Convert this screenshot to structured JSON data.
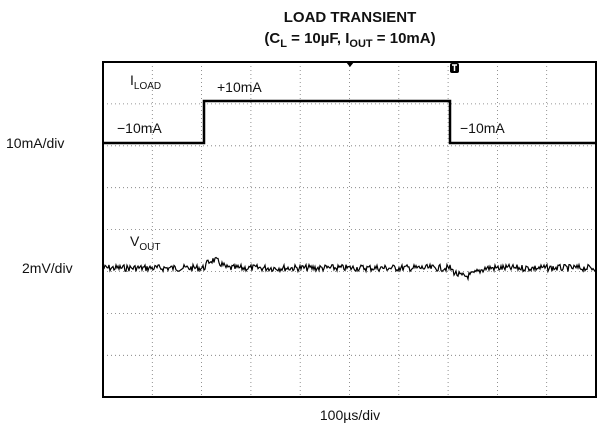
{
  "title": "LOAD TRANSIENT",
  "subtitle_parts": [
    "(C",
    "L",
    " = 10µF, I",
    "OUT",
    " = 10mA)"
  ],
  "channel1": {
    "name": "I",
    "name_sub": "LOAD",
    "scale": "10mA/div",
    "high_label": "+10mA",
    "low_label_left": "−10mA",
    "low_label_right": "−10mA"
  },
  "channel2": {
    "name": "V",
    "name_sub": "OUT",
    "scale": "2mV/div"
  },
  "timebase": "100µs/div"
}
